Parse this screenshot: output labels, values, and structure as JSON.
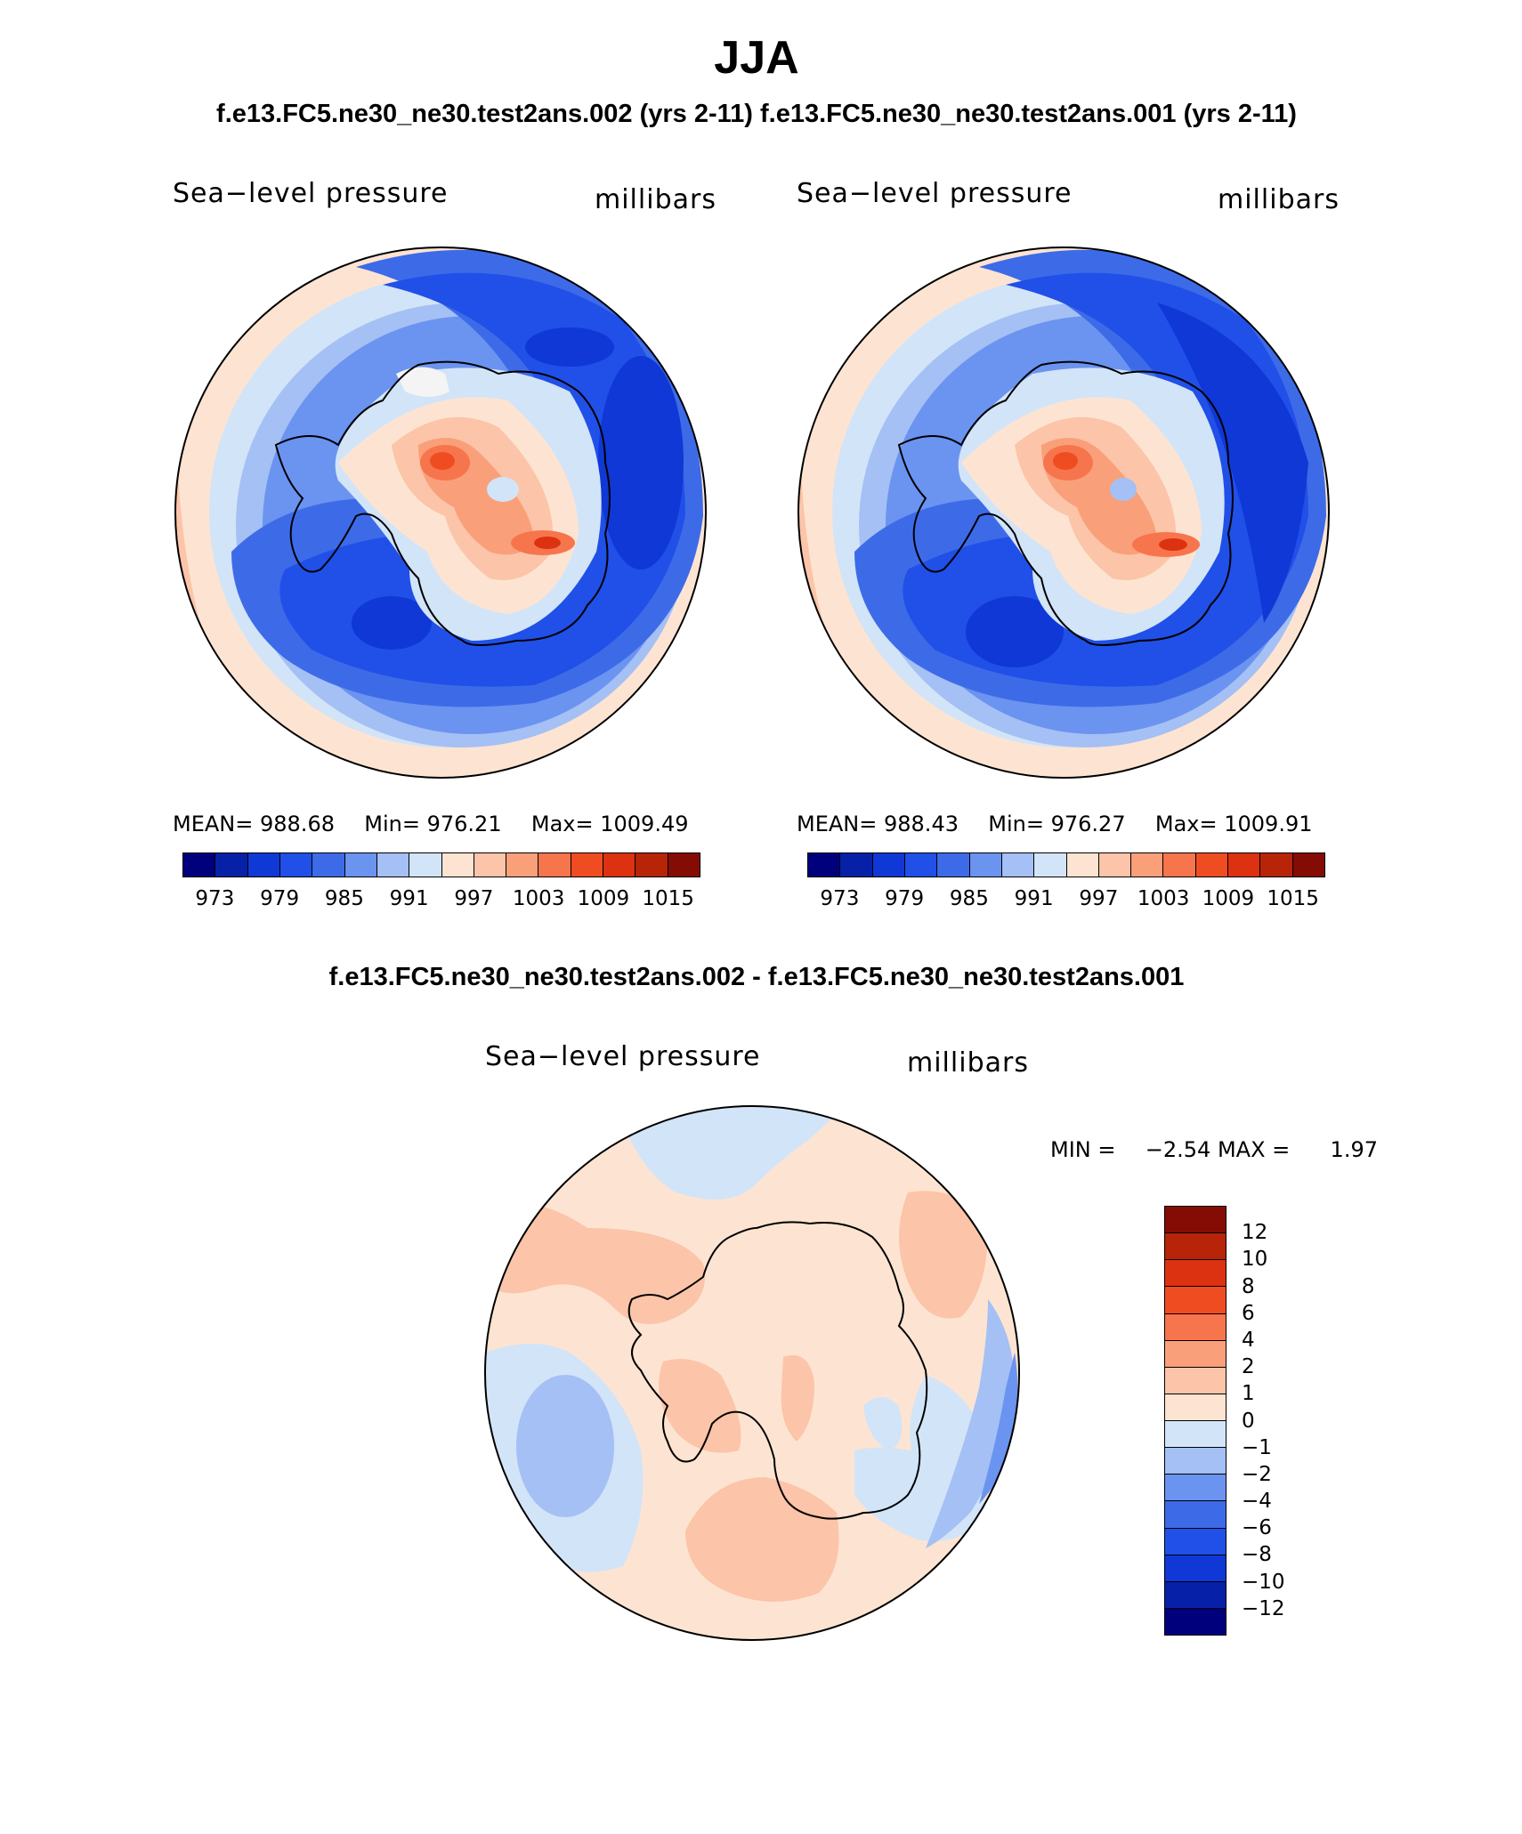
{
  "figure": {
    "main_title": "JJA",
    "subtitle": "f.e13.FC5.ne30_ne30.test2ans.002 (yrs 2-11) f.e13.FC5.ne30_ne30.test2ans.001 (yrs 2-11)",
    "diff_title": "f.e13.FC5.ne30_ne30.test2ans.002 - f.e13.FC5.ne30_ne30.test2ans.001"
  },
  "panels": [
    {
      "variable": "Sea−level pressure",
      "units": "millibars",
      "mean_label": "MEAN=",
      "mean_value": "988.68",
      "min_label": "Min=",
      "min_value": "976.21",
      "max_label": "Max=",
      "max_value": "1009.49"
    },
    {
      "variable": "Sea−level pressure",
      "units": "millibars",
      "mean_label": "MEAN=",
      "mean_value": "988.43",
      "min_label": "Min=",
      "min_value": "976.27",
      "max_label": "Max=",
      "max_value": "1009.91"
    }
  ],
  "diff_panel": {
    "variable": "Sea−level pressure",
    "units": "millibars",
    "min_label": "MIN =",
    "min_value": "−2.54",
    "max_label": "MAX =",
    "max_value": "1.97"
  },
  "colorbar_main": {
    "colors": [
      "#00007d",
      "#0621a8",
      "#1038d6",
      "#2050e8",
      "#3d6be8",
      "#6b93f0",
      "#a4c0f4",
      "#d2e4f8",
      "#fde4d2",
      "#fcc4a8",
      "#f9a07a",
      "#f7754d",
      "#f04c22",
      "#dc3212",
      "#b82408",
      "#850b05"
    ],
    "tick_labels": [
      "973",
      "979",
      "985",
      "991",
      "997",
      "1003",
      "1009",
      "1015"
    ]
  },
  "colorbar_diff": {
    "colors": [
      "#850b05",
      "#b82408",
      "#dc3212",
      "#f04c22",
      "#f7754d",
      "#f9a07a",
      "#fcc4a8",
      "#fde4d2",
      "#d2e4f8",
      "#a4c0f4",
      "#6b93f0",
      "#3d6be8",
      "#2050e8",
      "#1038d6",
      "#0621a8",
      "#00007d"
    ],
    "tick_labels": [
      "12",
      "10",
      "8",
      "6",
      "4",
      "2",
      "1",
      "0",
      "−1",
      "−2",
      "−4",
      "−6",
      "−8",
      "−10",
      "−12"
    ]
  }
}
